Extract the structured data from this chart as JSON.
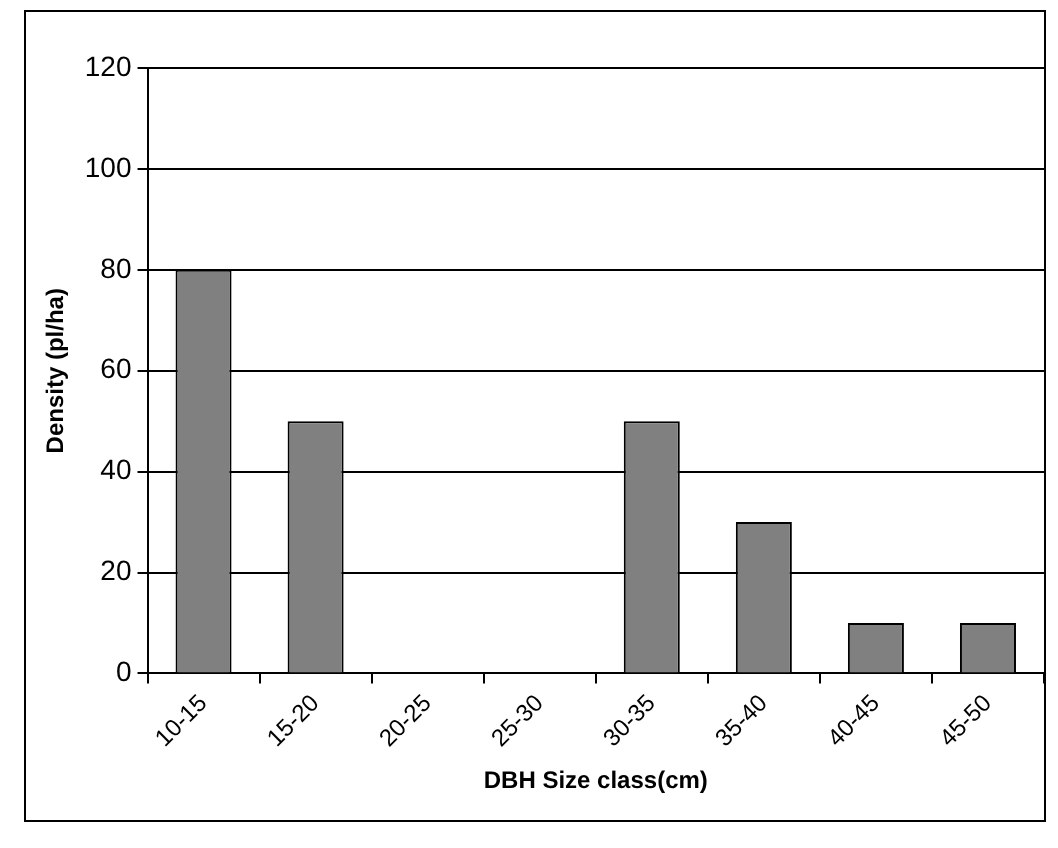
{
  "chart_data": {
    "type": "bar",
    "xlabel": "DBH Size class(cm)",
    "ylabel": "Density (pl/ha)",
    "categories": [
      "10-15",
      "15-20",
      "20-25",
      "25-30",
      "30-35",
      "35-40",
      "40-45",
      "45-50"
    ],
    "values": [
      80,
      50,
      0,
      0,
      50,
      30,
      10,
      10
    ],
    "color": "#808080",
    "ylim": [
      0,
      120
    ],
    "yticks": [
      0,
      20,
      40,
      60,
      80,
      100,
      120
    ],
    "grid": "y",
    "legend": false
  }
}
